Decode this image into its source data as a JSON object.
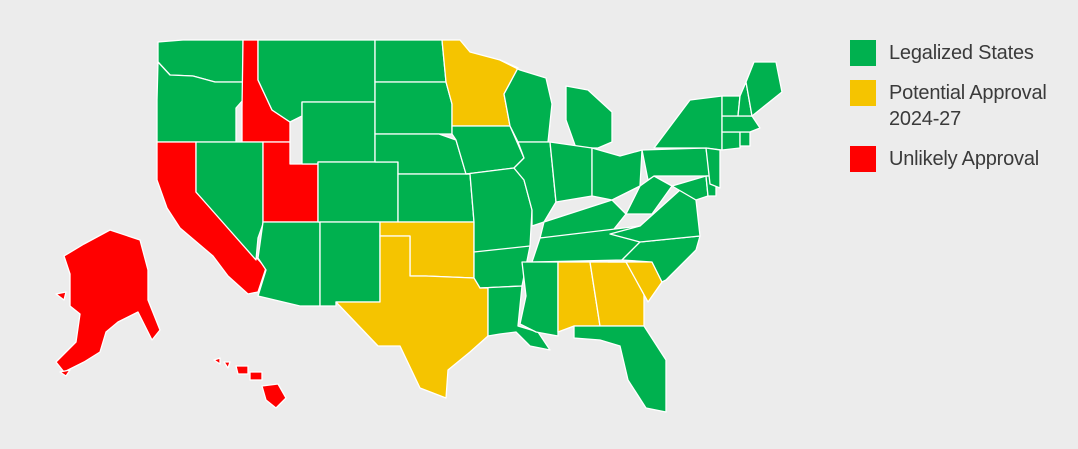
{
  "legend": {
    "legalized": {
      "label": "Legalized States",
      "color": "#00b14f"
    },
    "potential": {
      "label_line1": "Potential Approval",
      "label_line2": "2024-27",
      "color": "#f5c400"
    },
    "unlikely": {
      "label": "Unlikely Approval",
      "color": "#ff0000"
    }
  },
  "states": [
    {
      "name": "Washington",
      "status": "legalized"
    },
    {
      "name": "Oregon",
      "status": "legalized"
    },
    {
      "name": "California",
      "status": "unlikely"
    },
    {
      "name": "Idaho",
      "status": "unlikely"
    },
    {
      "name": "Nevada",
      "status": "legalized"
    },
    {
      "name": "Utah",
      "status": "unlikely"
    },
    {
      "name": "Arizona",
      "status": "legalized"
    },
    {
      "name": "Montana",
      "status": "legalized"
    },
    {
      "name": "Wyoming",
      "status": "legalized"
    },
    {
      "name": "Colorado",
      "status": "legalized"
    },
    {
      "name": "New Mexico",
      "status": "legalized"
    },
    {
      "name": "North Dakota",
      "status": "legalized"
    },
    {
      "name": "South Dakota",
      "status": "legalized"
    },
    {
      "name": "Nebraska",
      "status": "legalized"
    },
    {
      "name": "Kansas",
      "status": "legalized"
    },
    {
      "name": "Oklahoma",
      "status": "potential"
    },
    {
      "name": "Texas",
      "status": "potential"
    },
    {
      "name": "Minnesota",
      "status": "potential"
    },
    {
      "name": "Iowa",
      "status": "legalized"
    },
    {
      "name": "Missouri",
      "status": "legalized"
    },
    {
      "name": "Arkansas",
      "status": "legalized"
    },
    {
      "name": "Louisiana",
      "status": "legalized"
    },
    {
      "name": "Wisconsin",
      "status": "legalized"
    },
    {
      "name": "Illinois",
      "status": "legalized"
    },
    {
      "name": "Michigan",
      "status": "legalized"
    },
    {
      "name": "Indiana",
      "status": "legalized"
    },
    {
      "name": "Ohio",
      "status": "legalized"
    },
    {
      "name": "Kentucky",
      "status": "legalized"
    },
    {
      "name": "Tennessee",
      "status": "legalized"
    },
    {
      "name": "Mississippi",
      "status": "legalized"
    },
    {
      "name": "Alabama",
      "status": "potential"
    },
    {
      "name": "Georgia",
      "status": "potential"
    },
    {
      "name": "South Carolina",
      "status": "potential"
    },
    {
      "name": "North Carolina",
      "status": "legalized"
    },
    {
      "name": "Virginia",
      "status": "legalized"
    },
    {
      "name": "West Virginia",
      "status": "legalized"
    },
    {
      "name": "Florida",
      "status": "legalized"
    },
    {
      "name": "Pennsylvania",
      "status": "legalized"
    },
    {
      "name": "New York",
      "status": "legalized"
    },
    {
      "name": "Maryland",
      "status": "legalized"
    },
    {
      "name": "Delaware",
      "status": "legalized"
    },
    {
      "name": "New Jersey",
      "status": "legalized"
    },
    {
      "name": "Connecticut",
      "status": "legalized"
    },
    {
      "name": "Rhode Island",
      "status": "legalized"
    },
    {
      "name": "Massachusetts",
      "status": "legalized"
    },
    {
      "name": "Vermont",
      "status": "legalized"
    },
    {
      "name": "New Hampshire",
      "status": "legalized"
    },
    {
      "name": "Maine",
      "status": "legalized"
    },
    {
      "name": "Alaska",
      "status": "unlikely"
    },
    {
      "name": "Hawaii",
      "status": "unlikely"
    }
  ]
}
